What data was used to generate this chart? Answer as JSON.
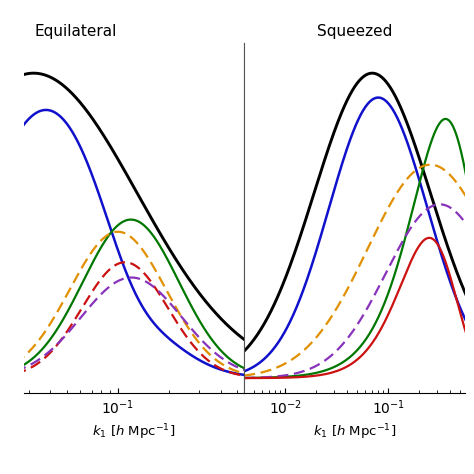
{
  "title_left": "Equilateral",
  "title_right": "Squeezed",
  "xlabel_left": "$k_1$ [$h$ Mpc$^{-1}$]",
  "xlabel_right": "$k_1$ [$h$ Mpc$^{-1}$]",
  "left_xlim": [
    0.028,
    0.55
  ],
  "right_xlim": [
    0.004,
    0.55
  ],
  "colors": {
    "black": "#000000",
    "blue": "#1111cc",
    "green": "#007700",
    "orange": "#e09000",
    "red": "#cc1111",
    "purple": "#8833bb"
  },
  "lw": 1.6
}
